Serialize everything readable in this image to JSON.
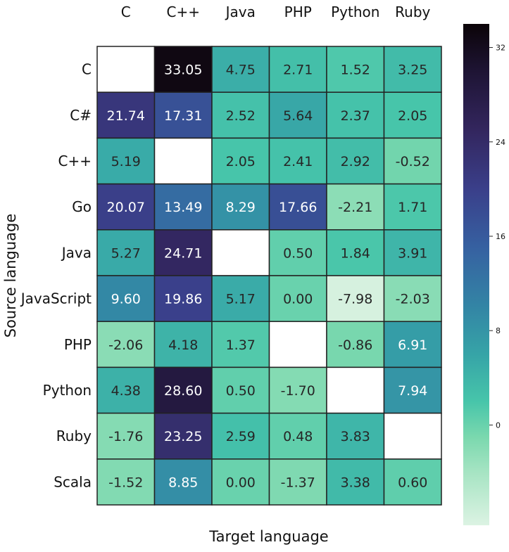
{
  "chart_data": {
    "type": "heatmap",
    "title": "",
    "xlabel": "Target language",
    "ylabel": "Source language",
    "x_categories": [
      "C",
      "C++",
      "Java",
      "PHP",
      "Python",
      "Ruby"
    ],
    "y_categories": [
      "C",
      "C#",
      "C++",
      "Go",
      "Java",
      "JavaScript",
      "PHP",
      "Python",
      "Ruby",
      "Scala"
    ],
    "values": [
      [
        null,
        33.05,
        4.75,
        2.71,
        1.52,
        3.25
      ],
      [
        21.74,
        17.31,
        2.52,
        5.64,
        2.37,
        2.05
      ],
      [
        5.19,
        null,
        2.05,
        2.41,
        2.92,
        -0.52
      ],
      [
        20.07,
        13.49,
        8.29,
        17.66,
        -2.21,
        1.71
      ],
      [
        5.27,
        24.71,
        null,
        0.5,
        1.84,
        3.91
      ],
      [
        9.6,
        19.86,
        5.17,
        0.0,
        -7.98,
        -2.03
      ],
      [
        -2.06,
        4.18,
        1.37,
        null,
        -0.86,
        6.91
      ],
      [
        4.38,
        28.6,
        0.5,
        -1.7,
        null,
        7.94
      ],
      [
        -1.76,
        23.25,
        2.59,
        0.48,
        3.83,
        null
      ],
      [
        -1.52,
        8.85,
        0.0,
        -1.37,
        3.38,
        0.6
      ]
    ],
    "labels": [
      [
        "",
        "33.05",
        "4.75",
        "2.71",
        "1.52",
        "3.25"
      ],
      [
        "21.74",
        "17.31",
        "2.52",
        "5.64",
        "2.37",
        "2.05"
      ],
      [
        "5.19",
        "",
        "2.05",
        "2.41",
        "2.92",
        "-0.52"
      ],
      [
        "20.07",
        "13.49",
        "8.29",
        "17.66",
        "-2.21",
        "1.71"
      ],
      [
        "5.27",
        "24.71",
        "",
        "0.50",
        "1.84",
        "3.91"
      ],
      [
        "9.60",
        "19.86",
        "5.17",
        "0.00",
        "-7.98",
        "-2.03"
      ],
      [
        "-2.06",
        "4.18",
        "1.37",
        "",
        "-0.86",
        "6.91"
      ],
      [
        "4.38",
        "28.60",
        "0.50",
        "-1.70",
        "",
        "7.94"
      ],
      [
        "-1.76",
        "23.25",
        "2.59",
        "0.48",
        "3.83",
        ""
      ],
      [
        "-1.52",
        "8.85",
        "0.00",
        "-1.37",
        "3.38",
        "0.60"
      ]
    ],
    "colorbar": {
      "min": -8.5,
      "max": 34,
      "ticks": [
        32,
        24,
        16,
        8,
        0
      ],
      "tick_labels": [
        "32",
        "24",
        "16",
        "8",
        "0"
      ]
    },
    "colormap": [
      {
        "v": -8.5,
        "c": "#dcf3e3"
      },
      {
        "v": -4,
        "c": "#a6e4c3"
      },
      {
        "v": -1,
        "c": "#7ad8ae"
      },
      {
        "v": 2,
        "c": "#47c5aa"
      },
      {
        "v": 6,
        "c": "#36a4a7"
      },
      {
        "v": 10,
        "c": "#3385a5"
      },
      {
        "v": 15,
        "c": "#3661a1"
      },
      {
        "v": 20,
        "c": "#3a3f8a"
      },
      {
        "v": 25,
        "c": "#33265e"
      },
      {
        "v": 30,
        "c": "#1e1434"
      },
      {
        "v": 34,
        "c": "#0b0408"
      }
    ],
    "missing_color": "#ffffff",
    "grid": true
  }
}
